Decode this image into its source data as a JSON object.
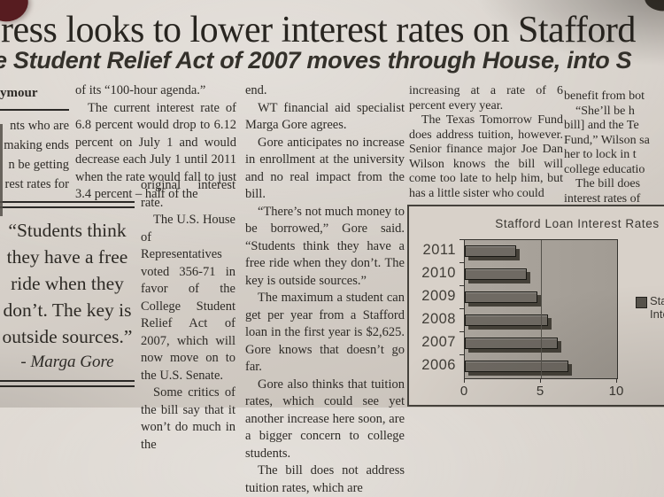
{
  "header": {
    "headline": "ress looks to lower interest rates on Stafford",
    "subheadline": "e Student Relief Act of 2007 moves through House, into S"
  },
  "column1": {
    "byline": "ymour",
    "lines": [
      "nts who are",
      "making ends",
      "n be getting",
      "rest rates for"
    ]
  },
  "pullquote": {
    "text": "“Students think they have a free ride when they don’t.  The key is outside sources.”",
    "attribution": "- Marga Gore"
  },
  "column2": {
    "para1": "of its “100-hour agenda.”",
    "para2": "The current interest rate of 6.8 percent would drop to 6.12 percent on July 1 and would decrease each July 1 until 2011 when the rate would fall to just 3.4 percent – half of the",
    "para2_cont": "original interest rate.",
    "para3": "The U.S. House of Representatives voted 356-71 in favor of the College Student Relief Act of 2007, which will now move on to the U.S. Senate.",
    "para4": "Some critics of the bill say that it won’t do much in the"
  },
  "column3": {
    "para0": "end.",
    "para1": "WT financial aid specialist Marga Gore agrees.",
    "para2": "Gore anticipates no increase in enrollment at the university and no real impact from the bill.",
    "para3": "“There’s not much money to be borrowed,” Gore said. “Students think they have a free ride when they don’t. The key is outside sources.”",
    "para4": "The maximum a student can get per year from a Stafford loan in the first year is $2,625. Gore knows that doesn’t go far.",
    "para5": "Gore also thinks that tuition rates, which could see yet another increase here soon, are a bigger concern to college students.",
    "para6": "The bill does not address tuition rates, which are"
  },
  "column4": {
    "para1": "increasing at a rate of 6 percent every year.",
    "para2": "The Texas Tomorrow Fund does address tuition, however. Senior finance major Joe Dan Wilson knows the bill will come too late to help him, but has a little sister who could"
  },
  "column5": {
    "lines": [
      {
        "text": "benefit from bot",
        "indent": false
      },
      {
        "text": "“She’ll be h",
        "indent": true
      },
      {
        "text": "bill] and the Te",
        "indent": false
      },
      {
        "text": "Fund,” Wilson sa",
        "indent": false
      },
      {
        "text": "her to lock in t",
        "indent": false
      },
      {
        "text": "college educatio",
        "indent": false
      },
      {
        "text": "The bill does",
        "indent": true
      },
      {
        "text": "interest rates of",
        "indent": false
      }
    ]
  },
  "chart_data": {
    "type": "bar",
    "orientation": "horizontal",
    "title": "Stafford Loan Interest Rates",
    "categories": [
      "2011",
      "2010",
      "2009",
      "2008",
      "2007",
      "2006"
    ],
    "values": [
      3.4,
      4.08,
      4.76,
      5.44,
      6.12,
      6.8
    ],
    "xlabel": "",
    "ylabel": "",
    "xlim": [
      0,
      10
    ],
    "xticks": [
      0,
      5,
      10
    ],
    "gridlines": [
      5
    ],
    "legend_position": "right",
    "legend_visible_lines": [
      "Sta",
      "Inte"
    ],
    "grid": true,
    "colors": {
      "bar": "#6f6a63",
      "bar_shadow": "#454139",
      "plot_bg": "#a8a29a",
      "legend_marker": "#57534c",
      "paper": "#d6d0c9"
    }
  }
}
